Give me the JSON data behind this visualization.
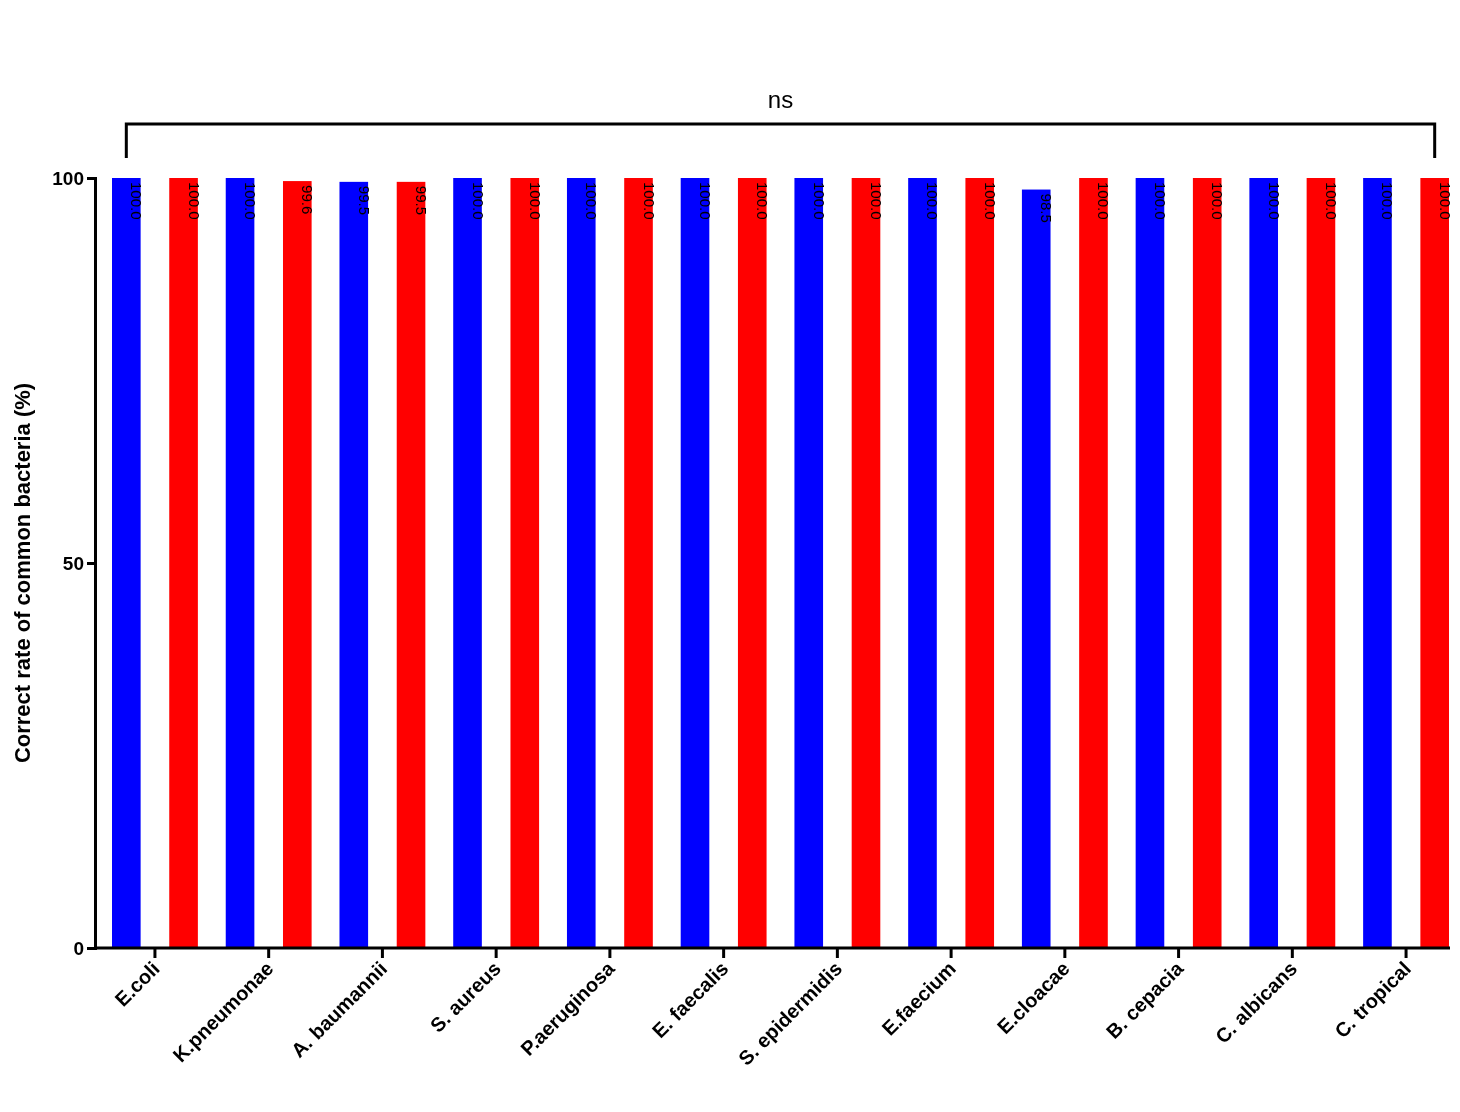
{
  "chart_data": {
    "type": "bar",
    "ylabel": "Correct rate of common bacteria (%)",
    "categories": [
      "E.coli",
      "K.pneumonae",
      "A. baumannii",
      "S. aureus",
      "P.aeruginosa",
      "E. faecalis",
      "S. epidermidis",
      "E.faecium",
      "E.cloacae",
      "B. cepacia",
      "C. albicans",
      "C. tropical"
    ],
    "series": [
      {
        "color": "#0000ff",
        "values": [
          100,
          100,
          99.5,
          100,
          100,
          100,
          100,
          100,
          98.5,
          100,
          100,
          100
        ],
        "value_labels": [
          "100.0",
          "100.0",
          "99.5",
          "100.0",
          "100.0",
          "100.0",
          "100.0",
          "100.0",
          "98.5",
          "100.0",
          "100.0",
          "100.0"
        ]
      },
      {
        "color": "#ff0000",
        "values": [
          100,
          99.6,
          99.5,
          100,
          100,
          100,
          100,
          100,
          100,
          100,
          100,
          100
        ],
        "value_labels": [
          "100.0",
          "99.6",
          "99.5",
          "100.0",
          "100.0",
          "100.0",
          "100.0",
          "100.0",
          "100.0",
          "100.0",
          "100.0",
          "100.0"
        ]
      }
    ],
    "ylim": [
      0,
      100
    ],
    "yticks": [
      0,
      50,
      100
    ],
    "grid": false,
    "legend": false,
    "annotations": [
      "ns"
    ]
  }
}
